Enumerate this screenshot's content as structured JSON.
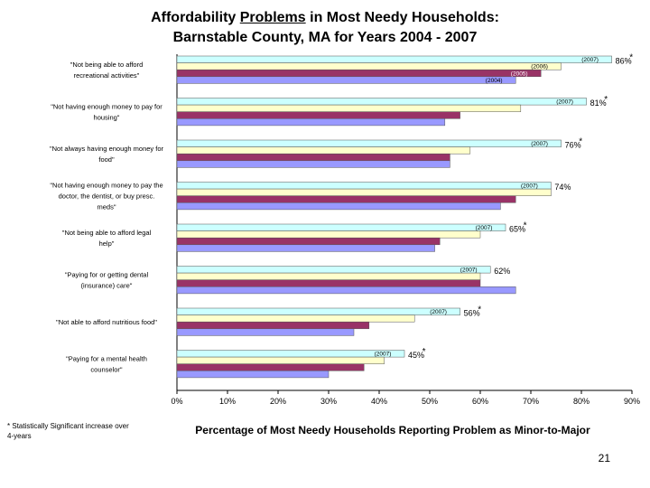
{
  "title_line1_pre": "Affordability ",
  "title_line1_underline": "Problems",
  "title_line1_post": " in Most Needy Households:",
  "title_line2": "Barnstable County, MA for Years 2004 - 2007",
  "footnote_star": "*",
  "footnote_text": "Statistically Significant increase over 4-years",
  "page_number": "21",
  "colors": {
    "y2007": "#ccffff",
    "y2006": "#ffffcc",
    "y2005": "#993366",
    "y2004": "#9999ff"
  },
  "chart_data": {
    "type": "bar",
    "orientation": "horizontal",
    "title": "Affordability Problems in Most Needy Households: Barnstable County, MA for Years 2004 - 2007",
    "xlabel": "Percentage of Most Needy Households Reporting Problem as Minor-to-Major",
    "xlim": [
      0,
      90
    ],
    "xticks": [
      "0%",
      "10%",
      "20%",
      "30%",
      "40%",
      "50%",
      "60%",
      "70%",
      "80%",
      "90%"
    ],
    "categories": [
      "\"Not being able to afford recreational activities\"",
      "\"Not having enough money to pay for housing\"",
      "\"Not always having enough money for food\"",
      "\"Not having enough money to pay the doctor, the dentist, or buy presc. meds\"",
      "\"Not being able to afford legal help\"",
      "\"Paying for or getting dental (insurance) care\"",
      "\"Not able to afford nutritious food\"",
      "\"Paying for a mental health counselor\""
    ],
    "series": [
      {
        "name": "2007",
        "values": [
          86,
          81,
          76,
          74,
          65,
          62,
          56,
          45
        ]
      },
      {
        "name": "2006",
        "values": [
          76,
          68,
          58,
          74,
          60,
          60,
          47,
          41
        ]
      },
      {
        "name": "2005",
        "values": [
          72,
          56,
          54,
          67,
          52,
          60,
          38,
          37
        ]
      },
      {
        "name": "2004",
        "values": [
          67,
          53,
          54,
          64,
          51,
          67,
          35,
          30
        ]
      }
    ],
    "value_labels": [
      "86%",
      "81%",
      "76%",
      "74%",
      "65%",
      "62%",
      "56%",
      "45%"
    ],
    "significant": [
      true,
      true,
      true,
      false,
      true,
      false,
      true,
      true
    ],
    "year_labels": {
      "0": [
        "(2007)",
        "(2006)",
        "(2005)",
        "(2004)"
      ],
      "1": [
        "(2007)"
      ],
      "2": [
        "(2007)"
      ],
      "3": [
        "(2007)"
      ],
      "4": [
        "(2007)"
      ],
      "5": [
        "(2007)"
      ],
      "6": [
        "(2007)"
      ],
      "7": [
        "(2007)"
      ]
    }
  }
}
